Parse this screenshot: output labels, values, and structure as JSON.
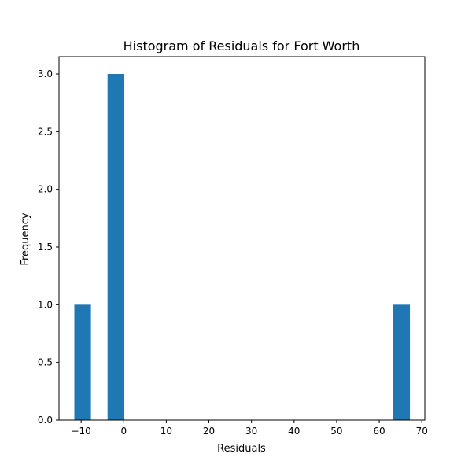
{
  "chart_data": {
    "type": "bar",
    "title": "Histogram of Residuals for Fort Worth",
    "xlabel": "Residuals",
    "ylabel": "Frequency",
    "xlim": [
      -15.2,
      70.7
    ],
    "ylim": [
      0,
      3.15
    ],
    "x_ticks": [
      -10,
      0,
      10,
      20,
      30,
      40,
      50,
      60,
      70
    ],
    "x_tick_labels": [
      "−10",
      "0",
      "10",
      "20",
      "30",
      "40",
      "50",
      "60",
      "70"
    ],
    "y_ticks": [
      0,
      0.5,
      1.0,
      1.5,
      2.0,
      2.5,
      3.0
    ],
    "y_tick_labels": [
      "0.0",
      "0.5",
      "1.0",
      "1.5",
      "2.0",
      "2.5",
      "3.0"
    ],
    "bins": [
      {
        "x_start": -11.6,
        "x_end": -7.7,
        "value": 1
      },
      {
        "x_start": -3.8,
        "x_end": 0.1,
        "value": 3
      },
      {
        "x_start": 63.3,
        "x_end": 67.2,
        "value": 1
      }
    ],
    "bar_color": "#1f77b4",
    "grid": false,
    "legend": false
  }
}
